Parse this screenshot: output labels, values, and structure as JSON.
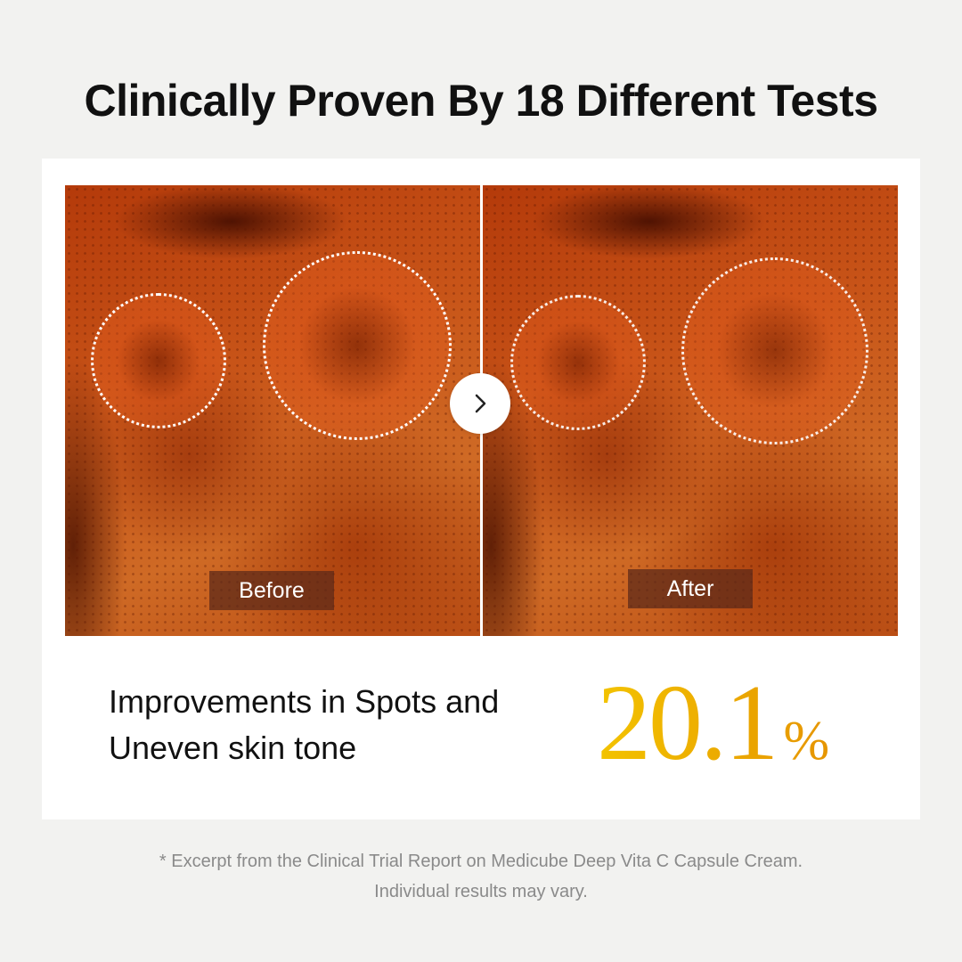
{
  "headline": "Clinically Proven By 18 Different Tests",
  "comparison": {
    "before_label": "Before",
    "after_label": "After",
    "arrow_icon": "chevron-right-icon"
  },
  "result": {
    "description_line1": "Improvements in Spots and",
    "description_line2": "Uneven skin tone",
    "value": "20.1",
    "unit": "%",
    "accent_color": "#eaa000"
  },
  "footnote": {
    "line1": "* Excerpt from the Clinical Trial Report on Medicube Deep Vita C Capsule Cream.",
    "line2": "Individual results may vary."
  }
}
